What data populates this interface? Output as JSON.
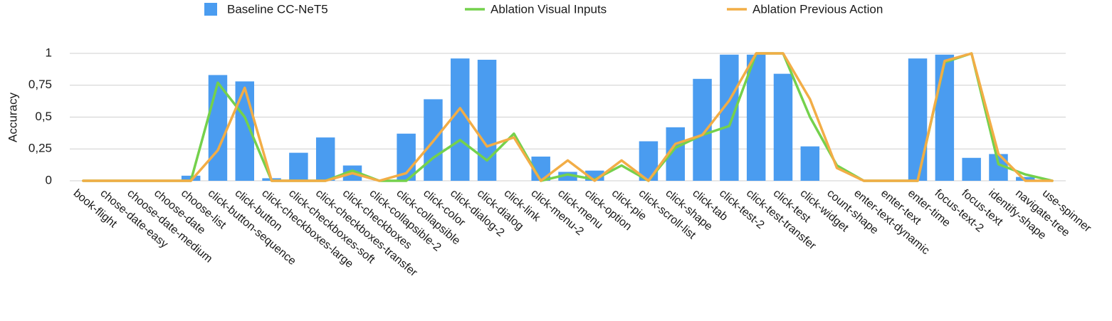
{
  "chart_data": {
    "type": "bar",
    "title": "",
    "xlabel": "",
    "ylabel": "Accuracy",
    "ylim": [
      0,
      1
    ],
    "yticks": [
      {
        "value": 0,
        "label": "0"
      },
      {
        "value": 0.25,
        "label": "0,25"
      },
      {
        "value": 0.5,
        "label": "0,5"
      },
      {
        "value": 0.75,
        "label": "0,75"
      },
      {
        "value": 1,
        "label": "1"
      }
    ],
    "grid": true,
    "legend_position": "top",
    "categories": [
      "book-flight",
      "chose-date-easy",
      "choose-date-medium",
      "choose-date",
      "choose-list",
      "click-button-sequence",
      "click-button",
      "click-checkboxes-large",
      "click-checkboxes-soft",
      "click-checkboxes-transfer",
      "click-checkboxes",
      "click-collapsible-2",
      "click-collapsible",
      "click-color",
      "click-dialog-2",
      "click-dialog",
      "click-link",
      "click-menu-2",
      "click-menu",
      "click-option",
      "click-pie",
      "click-scroll-list",
      "click-shape",
      "click-tab",
      "click-test-2",
      "click-test-transfer",
      "click-test",
      "click-widget",
      "count-shape",
      "enter-text-dynamic",
      "enter-text",
      "enter-time",
      "focus-text-2",
      "focus-text",
      "identify-shape",
      "navigate-tree",
      "use-spinner"
    ],
    "series": [
      {
        "name": "Baseline CC-NeT5",
        "kind": "bar",
        "color": "#4a9cf0",
        "values": [
          0,
          0,
          0,
          0,
          0.04,
          0.83,
          0.78,
          0.02,
          0.22,
          0.34,
          0.12,
          0,
          0.37,
          0.64,
          0.96,
          0.95,
          0,
          0.19,
          0.07,
          0.08,
          0,
          0.31,
          0.42,
          0.8,
          0.99,
          0.99,
          0.84,
          0.27,
          0,
          0,
          0,
          0.96,
          0.99,
          0.18,
          0.21,
          0.03,
          0
        ]
      },
      {
        "name": "Ablation Visual Inputs",
        "kind": "line",
        "color": "#74d14c",
        "values": [
          0,
          0,
          0,
          0,
          0,
          0.77,
          0.5,
          0,
          0,
          0,
          0.08,
          0,
          0,
          0.18,
          0.32,
          0.16,
          0.37,
          0,
          0.05,
          0.01,
          0.12,
          0,
          0.26,
          0.36,
          0.43,
          1,
          1,
          0.5,
          0.12,
          0,
          0,
          0,
          0.93,
          1,
          0.13,
          0.05,
          0
        ]
      },
      {
        "name": "Ablation Previous Action",
        "kind": "line",
        "color": "#f2ad46",
        "values": [
          0,
          0,
          0,
          0,
          0,
          0.24,
          0.73,
          0,
          0,
          0,
          0.06,
          0,
          0.06,
          0.31,
          0.57,
          0.27,
          0.34,
          0,
          0.16,
          0,
          0.16,
          0,
          0.29,
          0.36,
          0.63,
          1,
          1,
          0.64,
          0.1,
          0,
          0,
          0,
          0.94,
          1,
          0.21,
          0,
          0
        ]
      }
    ]
  }
}
